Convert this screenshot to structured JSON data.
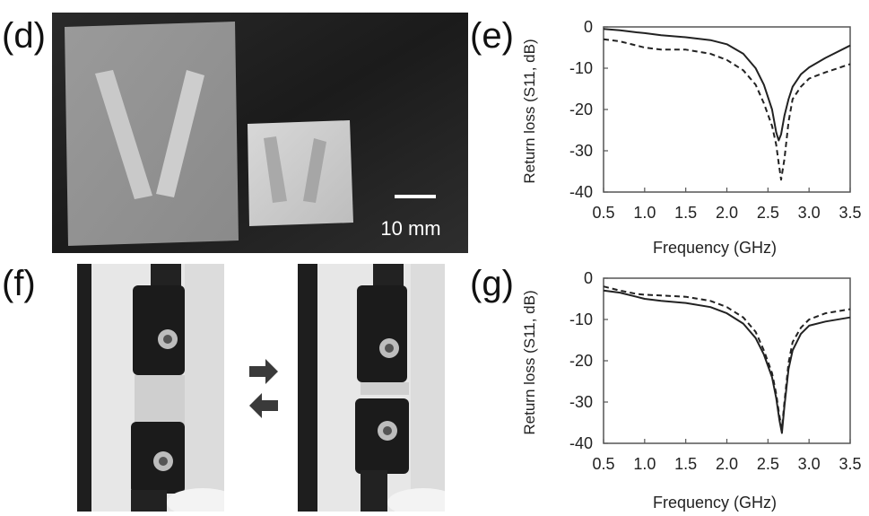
{
  "labels": {
    "d": "(d)",
    "e": "(e)",
    "f": "(f)",
    "g": "(g)"
  },
  "photo_d": {
    "scale_text": "10 mm"
  },
  "chart_data": [
    {
      "id": "e",
      "type": "line",
      "xlabel": "Frequency (GHz)",
      "ylabel": "Return loss (S11, dB)",
      "xlim": [
        0.5,
        3.5
      ],
      "ylim": [
        -40,
        0
      ],
      "xticks": [
        0.5,
        1.0,
        1.5,
        2.0,
        2.5,
        3.0,
        3.5
      ],
      "xtick_labels": [
        "0.5",
        "1.0",
        "1.5",
        "2.0",
        "2.5",
        "3.0",
        "3.5"
      ],
      "yticks": [
        0,
        -10,
        -20,
        -30,
        -40
      ],
      "ytick_labels": [
        "0",
        "-10",
        "-20",
        "-30",
        "-40"
      ],
      "grid": false,
      "series": [
        {
          "style": "solid",
          "color": "#222222",
          "x": [
            0.5,
            0.7,
            0.9,
            1.0,
            1.2,
            1.5,
            1.8,
            2.0,
            2.2,
            2.35,
            2.45,
            2.55,
            2.6,
            2.63,
            2.66,
            2.7,
            2.75,
            2.8,
            2.9,
            3.0,
            3.2,
            3.5
          ],
          "y": [
            -0.5,
            -0.8,
            -1.3,
            -1.5,
            -2.0,
            -2.5,
            -3.2,
            -4.2,
            -6.5,
            -10.0,
            -14.0,
            -20.0,
            -25.5,
            -27.5,
            -26.0,
            -21.5,
            -17.5,
            -14.5,
            -11.5,
            -9.8,
            -7.5,
            -4.5
          ]
        },
        {
          "style": "dashed",
          "color": "#222222",
          "x": [
            0.5,
            0.7,
            0.9,
            1.0,
            1.2,
            1.5,
            1.8,
            2.0,
            2.2,
            2.35,
            2.45,
            2.55,
            2.6,
            2.63,
            2.66,
            2.7,
            2.75,
            2.8,
            2.9,
            3.0,
            3.2,
            3.5
          ],
          "y": [
            -3.0,
            -3.5,
            -4.5,
            -5.0,
            -5.5,
            -5.5,
            -6.5,
            -8.0,
            -10.5,
            -14.0,
            -18.5,
            -24.0,
            -28.5,
            -33.0,
            -37.0,
            -32.0,
            -23.0,
            -17.5,
            -14.5,
            -12.5,
            -11.0,
            -9.0
          ]
        }
      ]
    },
    {
      "id": "g",
      "type": "line",
      "xlabel": "Frequency (GHz)",
      "ylabel": "Return loss (S11, dB)",
      "xlim": [
        0.5,
        3.5
      ],
      "ylim": [
        -40,
        0
      ],
      "xticks": [
        0.5,
        1.0,
        1.5,
        2.0,
        2.5,
        3.0,
        3.5
      ],
      "xtick_labels": [
        "0.5",
        "1.0",
        "1.5",
        "2.0",
        "2.5",
        "3.0",
        "3.5"
      ],
      "yticks": [
        0,
        -10,
        -20,
        -30,
        -40
      ],
      "ytick_labels": [
        "0",
        "-10",
        "-20",
        "-30",
        "-40"
      ],
      "grid": false,
      "series": [
        {
          "style": "solid",
          "color": "#222222",
          "x": [
            0.5,
            0.7,
            0.9,
            1.0,
            1.2,
            1.5,
            1.8,
            2.0,
            2.2,
            2.35,
            2.45,
            2.55,
            2.6,
            2.64,
            2.67,
            2.7,
            2.75,
            2.8,
            2.9,
            3.0,
            3.2,
            3.5
          ],
          "y": [
            -3.0,
            -3.5,
            -4.5,
            -5.0,
            -5.5,
            -6.0,
            -7.0,
            -8.5,
            -11.0,
            -14.5,
            -18.5,
            -24.0,
            -29.0,
            -34.5,
            -37.5,
            -31.0,
            -22.0,
            -17.5,
            -13.5,
            -11.5,
            -10.5,
            -9.5
          ]
        },
        {
          "style": "dashed",
          "color": "#222222",
          "x": [
            0.5,
            0.7,
            0.9,
            1.0,
            1.2,
            1.5,
            1.8,
            2.0,
            2.2,
            2.35,
            2.45,
            2.55,
            2.6,
            2.64,
            2.67,
            2.7,
            2.75,
            2.8,
            2.9,
            3.0,
            3.2,
            3.5
          ],
          "y": [
            -2.0,
            -3.0,
            -3.8,
            -4.0,
            -4.2,
            -4.5,
            -5.5,
            -7.0,
            -9.5,
            -13.0,
            -17.5,
            -23.0,
            -28.0,
            -33.5,
            -36.5,
            -30.0,
            -20.5,
            -15.5,
            -12.0,
            -10.0,
            -8.5,
            -7.5
          ]
        }
      ]
    }
  ]
}
